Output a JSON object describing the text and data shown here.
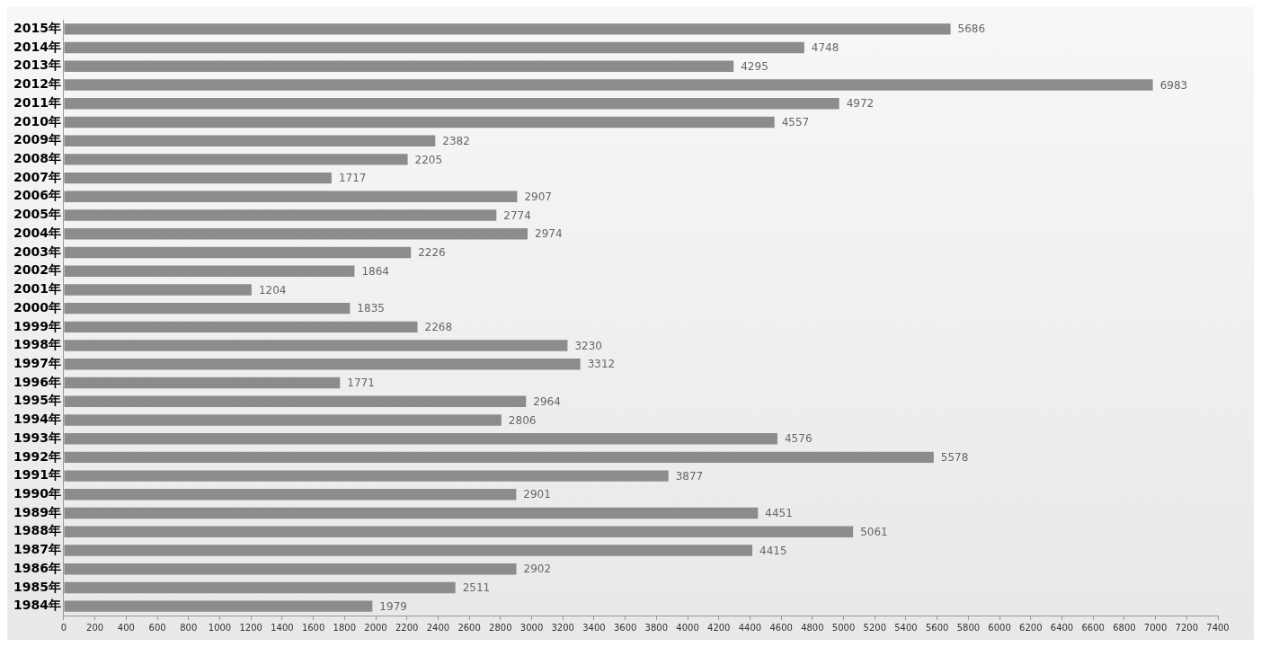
{
  "chart_data": {
    "type": "bar",
    "orientation": "horizontal",
    "categories": [
      "2015年",
      "2014年",
      "2013年",
      "2012年",
      "2011年",
      "2010年",
      "2009年",
      "2008年",
      "2007年",
      "2006年",
      "2005年",
      "2004年",
      "2003年",
      "2002年",
      "2001年",
      "2000年",
      "1999年",
      "1998年",
      "1997年",
      "1996年",
      "1995年",
      "1994年",
      "1993年",
      "1992年",
      "1991年",
      "1990年",
      "1989年",
      "1988年",
      "1987年",
      "1986年",
      "1985年",
      "1984年"
    ],
    "values": [
      5686,
      4748,
      4295,
      6983,
      4972,
      4557,
      2382,
      2205,
      1717,
      2907,
      2774,
      2974,
      2226,
      1864,
      1204,
      1835,
      2268,
      3230,
      3312,
      1771,
      2964,
      2806,
      4576,
      5578,
      3877,
      2901,
      4451,
      5061,
      4415,
      2902,
      2511,
      1979
    ],
    "color": "#8c8c8c",
    "xlim": [
      0,
      7400
    ],
    "xticks": [
      0,
      200,
      400,
      600,
      800,
      1000,
      1200,
      1400,
      1600,
      1800,
      2000,
      2200,
      2400,
      2600,
      2800,
      3000,
      3200,
      3400,
      3600,
      3800,
      4000,
      4200,
      4400,
      4600,
      4800,
      5000,
      5200,
      5400,
      5600,
      5800,
      6000,
      6200,
      6400,
      6600,
      6800,
      7000,
      7200,
      7400
    ],
    "data_labels": true,
    "grid": false,
    "legend": false
  }
}
